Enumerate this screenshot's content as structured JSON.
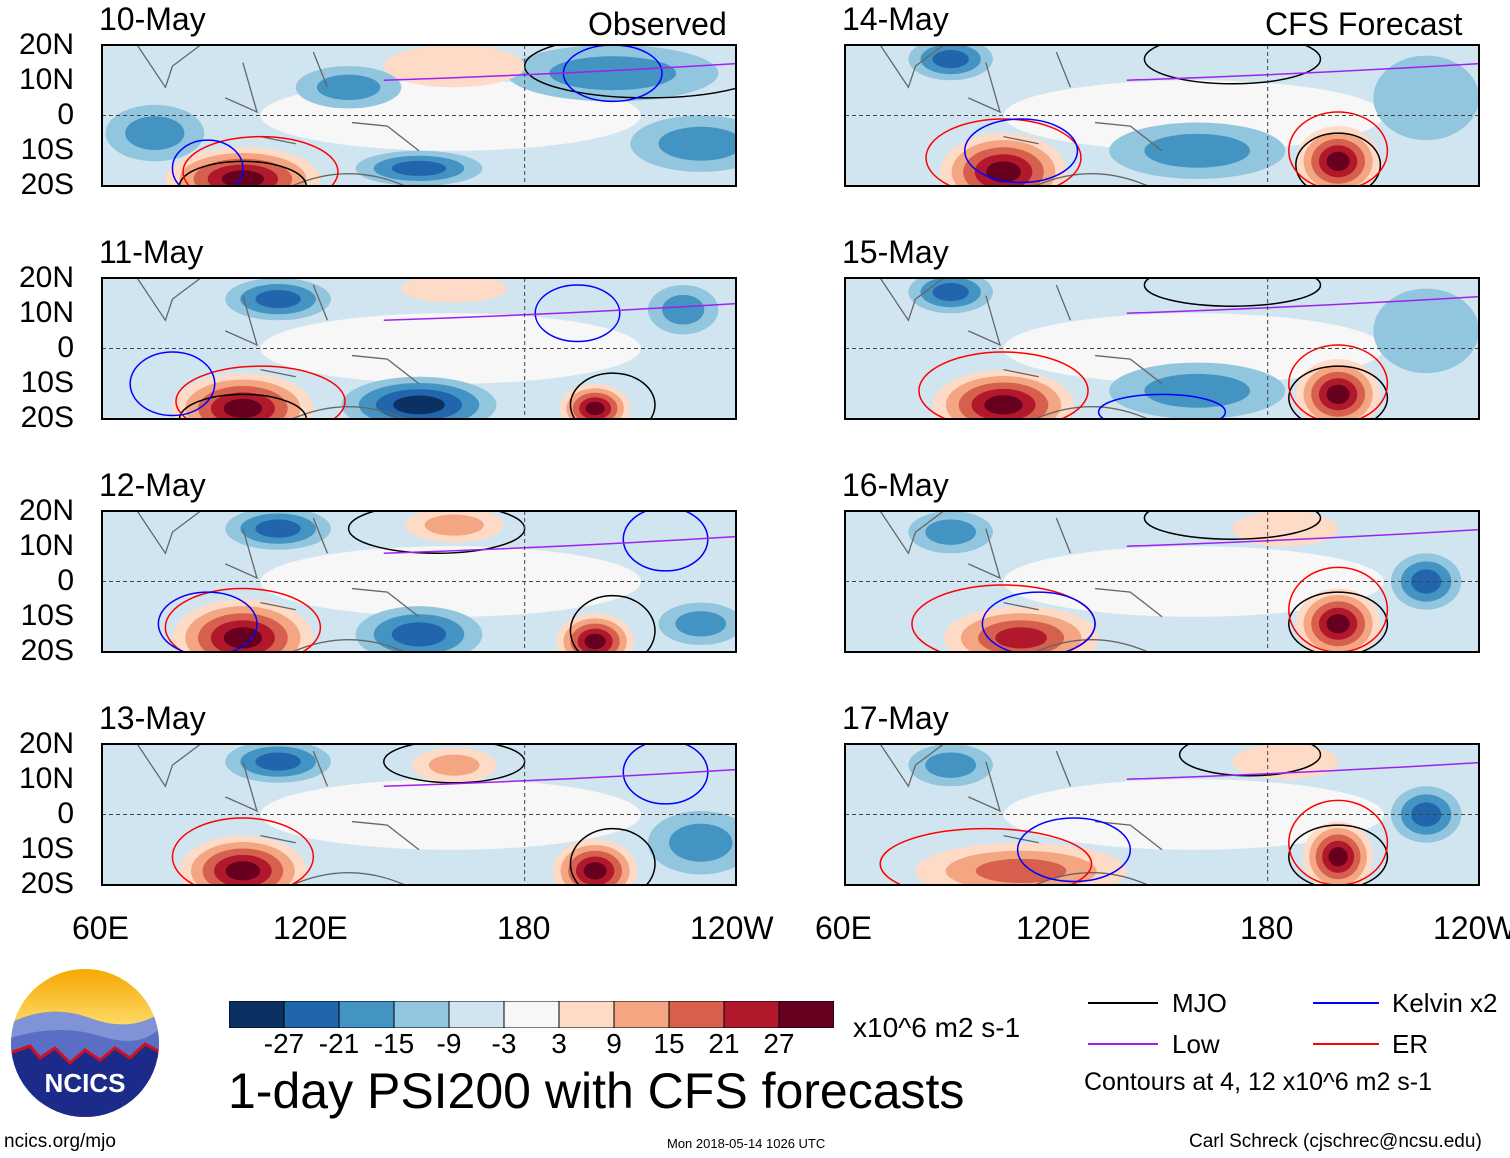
{
  "header": {
    "left_label": "Observed",
    "right_label": "CFS Forecast"
  },
  "title": "1-day PSI200 with CFS forecasts",
  "footer": {
    "left": "ncics.org/mjo",
    "center": "Mon 2018-05-14 1026 UTC",
    "right": "Carl Schreck (cjschrec@ncsu.edu)"
  },
  "logo_text": "NCICS",
  "colorbar": {
    "unit": "x10^6 m2 s-1",
    "ticks": [
      "-27",
      "-21",
      "-15",
      "-9",
      "-3",
      "3",
      "9",
      "15",
      "21",
      "27"
    ],
    "colors": [
      "#0b3163",
      "#2166ac",
      "#4393c3",
      "#92c5de",
      "#d1e5f0",
      "#f7f7f7",
      "#fddbc7",
      "#f4a582",
      "#d6604d",
      "#b2182b",
      "#67001f"
    ]
  },
  "legend": {
    "items": [
      {
        "label": "MJO",
        "color": "#000000"
      },
      {
        "label": "Kelvin x2",
        "color": "#0000ff"
      },
      {
        "label": "Low",
        "color": "#a020f0"
      },
      {
        "label": "ER",
        "color": "#ff0000"
      }
    ],
    "note": "Contours at 4, 12 x10^6 m2 s-1"
  },
  "chart_data": {
    "type": "heatmap",
    "variable": "PSI200 anomaly",
    "lon_range": [
      60,
      240
    ],
    "lat_range": [
      -20,
      20
    ],
    "lat_ticks": [
      "20N",
      "10N",
      "0",
      "10S",
      "20S"
    ],
    "lon_ticks": [
      "60E",
      "120E",
      "180",
      "120W"
    ],
    "panels": [
      {
        "date": "10-May",
        "blobs": [
          [
            100,
            -18,
            22,
            9,
            27
          ],
          [
            150,
            -15,
            18,
            5,
            -15
          ],
          [
            205,
            12,
            30,
            8,
            -9
          ],
          [
            230,
            -8,
            20,
            8,
            -9
          ],
          [
            160,
            14,
            20,
            6,
            3
          ],
          [
            75,
            -5,
            14,
            8,
            -9
          ],
          [
            130,
            8,
            15,
            6,
            -9
          ]
        ],
        "contours": [
          [
            "MJO",
            215,
            14,
            35,
            9
          ],
          [
            "MJO",
            100,
            -20,
            18,
            7
          ],
          [
            "ER",
            105,
            -16,
            22,
            10
          ],
          [
            "Kelvin",
            205,
            12,
            14,
            8
          ],
          [
            "Kelvin",
            90,
            -15,
            10,
            8
          ],
          [
            "Low",
            200,
            12,
            60,
            3
          ]
        ]
      },
      {
        "date": "11-May",
        "blobs": [
          [
            100,
            -17,
            20,
            10,
            27
          ],
          [
            200,
            -17,
            10,
            7,
            27
          ],
          [
            150,
            -16,
            22,
            8,
            -21
          ],
          [
            110,
            14,
            15,
            6,
            -15
          ],
          [
            160,
            17,
            15,
            4,
            3
          ],
          [
            225,
            11,
            10,
            7,
            -9
          ]
        ],
        "contours": [
          [
            "MJO",
            100,
            -20,
            18,
            7
          ],
          [
            "MJO",
            205,
            -16,
            12,
            9
          ],
          [
            "ER",
            105,
            -15,
            24,
            10
          ],
          [
            "Kelvin",
            195,
            10,
            12,
            8
          ],
          [
            "Kelvin",
            80,
            -10,
            12,
            9
          ],
          [
            "Low",
            200,
            10,
            60,
            3
          ]
        ]
      },
      {
        "date": "12-May",
        "blobs": [
          [
            100,
            -16,
            20,
            11,
            27
          ],
          [
            200,
            -17,
            11,
            8,
            27
          ],
          [
            150,
            -15,
            18,
            8,
            -15
          ],
          [
            110,
            15,
            15,
            6,
            -15
          ],
          [
            160,
            16,
            14,
            5,
            9
          ],
          [
            230,
            -12,
            12,
            6,
            -9
          ]
        ],
        "contours": [
          [
            "MJO",
            155,
            15,
            25,
            7
          ],
          [
            "MJO",
            205,
            -14,
            12,
            10
          ],
          [
            "ER",
            100,
            -13,
            22,
            11
          ],
          [
            "Kelvin",
            220,
            12,
            12,
            9
          ],
          [
            "Kelvin",
            90,
            -12,
            14,
            9
          ],
          [
            "Low",
            200,
            10,
            60,
            3
          ]
        ]
      },
      {
        "date": "13-May",
        "blobs": [
          [
            100,
            -16,
            18,
            10,
            27
          ],
          [
            200,
            -16,
            12,
            9,
            27
          ],
          [
            110,
            15,
            15,
            6,
            -15
          ],
          [
            160,
            14,
            12,
            5,
            9
          ],
          [
            230,
            -8,
            15,
            9,
            -9
          ]
        ],
        "contours": [
          [
            "MJO",
            160,
            15,
            20,
            6
          ],
          [
            "MJO",
            205,
            -14,
            12,
            10
          ],
          [
            "ER",
            100,
            -12,
            20,
            11
          ],
          [
            "Kelvin",
            220,
            12,
            12,
            9
          ],
          [
            "Low",
            200,
            10,
            60,
            3
          ]
        ]
      },
      {
        "date": "14-May",
        "blobs": [
          [
            105,
            -16,
            18,
            11,
            27
          ],
          [
            200,
            -13,
            12,
            10,
            27
          ],
          [
            90,
            16,
            12,
            6,
            -15
          ],
          [
            160,
            -10,
            25,
            8,
            -9
          ],
          [
            225,
            5,
            15,
            12,
            -3
          ]
        ],
        "contours": [
          [
            "MJO",
            170,
            16,
            25,
            7
          ],
          [
            "MJO",
            200,
            -14,
            12,
            9
          ],
          [
            "ER",
            105,
            -12,
            22,
            11
          ],
          [
            "ER",
            200,
            -10,
            14,
            11
          ],
          [
            "Kelvin",
            110,
            -10,
            16,
            9
          ],
          [
            "Low",
            200,
            12,
            60,
            3
          ]
        ]
      },
      {
        "date": "15-May",
        "blobs": [
          [
            105,
            -16,
            20,
            10,
            27
          ],
          [
            200,
            -13,
            12,
            10,
            27
          ],
          [
            90,
            16,
            12,
            6,
            -15
          ],
          [
            160,
            -12,
            25,
            8,
            -9
          ],
          [
            225,
            5,
            15,
            12,
            -3
          ]
        ],
        "contours": [
          [
            "MJO",
            170,
            18,
            25,
            6
          ],
          [
            "MJO",
            200,
            -14,
            14,
            9
          ],
          [
            "ER",
            105,
            -12,
            24,
            11
          ],
          [
            "ER",
            200,
            -10,
            14,
            11
          ],
          [
            "Kelvin",
            150,
            -18,
            18,
            5
          ],
          [
            "Low",
            200,
            12,
            60,
            3
          ]
        ]
      },
      {
        "date": "16-May",
        "blobs": [
          [
            110,
            -16,
            22,
            9,
            21
          ],
          [
            200,
            -12,
            12,
            10,
            27
          ],
          [
            90,
            14,
            12,
            6,
            -9
          ],
          [
            225,
            0,
            10,
            8,
            -15
          ],
          [
            185,
            15,
            15,
            5,
            3
          ]
        ],
        "contours": [
          [
            "MJO",
            170,
            18,
            25,
            6
          ],
          [
            "MJO",
            200,
            -12,
            14,
            9
          ],
          [
            "ER",
            105,
            -12,
            26,
            11
          ],
          [
            "ER",
            200,
            -8,
            14,
            12
          ],
          [
            "Kelvin",
            115,
            -12,
            16,
            9
          ],
          [
            "Low",
            200,
            12,
            60,
            3
          ]
        ]
      },
      {
        "date": "17-May",
        "blobs": [
          [
            110,
            -16,
            30,
            8,
            15
          ],
          [
            200,
            -12,
            10,
            10,
            27
          ],
          [
            90,
            14,
            12,
            6,
            -9
          ],
          [
            225,
            0,
            10,
            8,
            -15
          ],
          [
            185,
            15,
            15,
            5,
            3
          ]
        ],
        "contours": [
          [
            "MJO",
            175,
            17,
            20,
            6
          ],
          [
            "MJO",
            200,
            -12,
            14,
            9
          ],
          [
            "ER",
            100,
            -14,
            30,
            10
          ],
          [
            "ER",
            200,
            -8,
            14,
            12
          ],
          [
            "Kelvin",
            125,
            -10,
            16,
            9
          ],
          [
            "Low",
            200,
            12,
            60,
            3
          ]
        ]
      }
    ]
  }
}
